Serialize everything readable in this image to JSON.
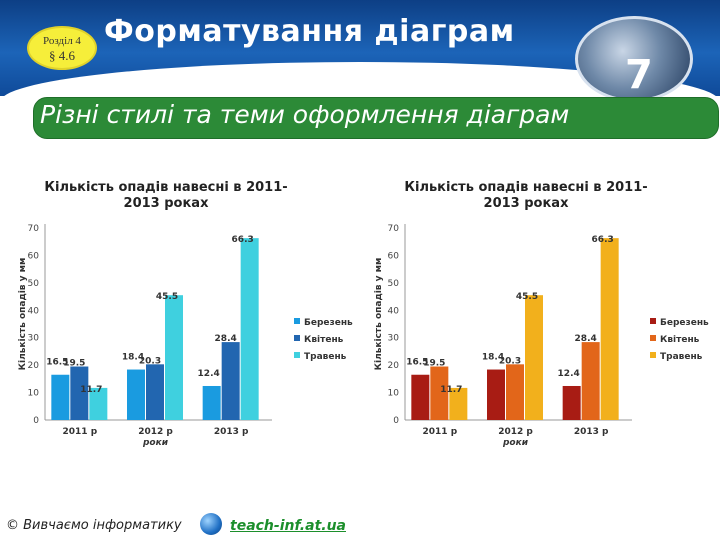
{
  "header": {
    "badge_chapter": "Розділ 4",
    "badge_paragraph": "§ 4.6",
    "title": "Форматування діаграм",
    "logo_number": "7"
  },
  "subtitle": "Різні стилі та теми оформлення діаграм",
  "footer": {
    "copyright": "© Вивчаємо інформатику",
    "site": "teach-inf.at.ua"
  },
  "chart_data": [
    {
      "type": "bar",
      "title": "Кількість опадів навесні в 2011-2013 роках",
      "ylabel": "Кількість опадів у мм",
      "xlabel": "роки",
      "categories": [
        "2011 р",
        "2012 р",
        "2013 р"
      ],
      "series": [
        {
          "name": "Березень",
          "values": [
            16.5,
            18.4,
            12.4
          ],
          "color": "#1a9be0"
        },
        {
          "name": "Квітень",
          "values": [
            19.5,
            20.3,
            28.4
          ],
          "color": "#2266b0"
        },
        {
          "name": "Травень",
          "values": [
            11.7,
            45.5,
            66.3
          ],
          "color": "#3fd0df"
        }
      ],
      "ylim": [
        0,
        70
      ],
      "yticks": [
        0,
        10,
        20,
        30,
        40,
        50,
        60,
        70
      ],
      "grid": false,
      "legend": "right"
    },
    {
      "type": "bar",
      "title": "Кількість опадів навесні в 2011-2013 роках",
      "ylabel": "Кількість опадів у мм",
      "xlabel": "роки",
      "categories": [
        "2011 р",
        "2012 р",
        "2013 р"
      ],
      "series": [
        {
          "name": "Березень",
          "values": [
            16.5,
            18.4,
            12.4
          ],
          "color": "#a81c14"
        },
        {
          "name": "Квітень",
          "values": [
            19.5,
            20.3,
            28.4
          ],
          "color": "#e2661a"
        },
        {
          "name": "Травень",
          "values": [
            11.7,
            45.5,
            66.3
          ],
          "color": "#f2b01c"
        }
      ],
      "ylim": [
        0,
        70
      ],
      "yticks": [
        0,
        10,
        20,
        30,
        40,
        50,
        60,
        70
      ],
      "grid": false,
      "legend": "right"
    }
  ]
}
